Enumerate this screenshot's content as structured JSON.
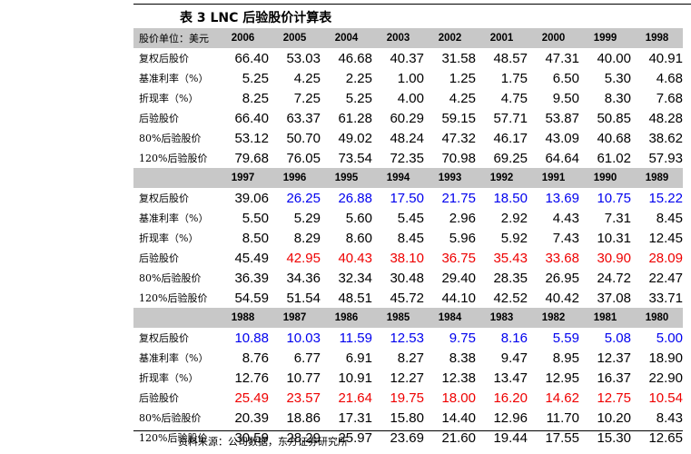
{
  "title": "表 3   LNC 后验股价计算表",
  "source": "资料来源：公司数据，东方证券研究所",
  "colors": {
    "header_bg": "#c8c8c8",
    "blue": "#0000ee",
    "red": "#ee0000",
    "black": "#000000"
  },
  "header_label": "股价单位：美元",
  "blocks": [
    {
      "years": [
        "2006",
        "2005",
        "2004",
        "2003",
        "2002",
        "2001",
        "2000",
        "1999",
        "1998"
      ],
      "show_label": true,
      "rows": [
        {
          "label": "复权后股价",
          "values": [
            "66.40",
            "53.03",
            "46.68",
            "40.37",
            "31.58",
            "48.57",
            "47.31",
            "40.00",
            "40.91"
          ],
          "color": "black"
        },
        {
          "label": "基准利率（%）",
          "values": [
            "5.25",
            "4.25",
            "2.25",
            "1.00",
            "1.25",
            "1.75",
            "6.50",
            "5.30",
            "4.68"
          ],
          "color": "black"
        },
        {
          "label": "折现率（%）",
          "values": [
            "8.25",
            "7.25",
            "5.25",
            "4.00",
            "4.25",
            "4.75",
            "9.50",
            "8.30",
            "7.68"
          ],
          "color": "black"
        },
        {
          "label": "后验股价",
          "values": [
            "66.40",
            "63.37",
            "61.28",
            "60.29",
            "59.15",
            "57.71",
            "53.87",
            "50.85",
            "48.28"
          ],
          "color": "black"
        },
        {
          "label": "80%后验股价",
          "values": [
            "53.12",
            "50.70",
            "49.02",
            "48.24",
            "47.32",
            "46.17",
            "43.09",
            "40.68",
            "38.62"
          ],
          "color": "black"
        },
        {
          "label": "120%后验股价",
          "values": [
            "79.68",
            "76.05",
            "73.54",
            "72.35",
            "70.98",
            "69.25",
            "64.64",
            "61.02",
            "57.93"
          ],
          "color": "black"
        }
      ]
    },
    {
      "years": [
        "1997",
        "1996",
        "1995",
        "1994",
        "1993",
        "1992",
        "1991",
        "1990",
        "1989"
      ],
      "show_label": false,
      "rows": [
        {
          "label": "复权后股价",
          "values": [
            "39.06",
            "26.25",
            "26.88",
            "17.50",
            "21.75",
            "18.50",
            "13.69",
            "10.75",
            "15.22"
          ],
          "color": "blue",
          "first_black": true
        },
        {
          "label": "基准利率（%）",
          "values": [
            "5.50",
            "5.29",
            "5.60",
            "5.45",
            "2.96",
            "2.92",
            "4.43",
            "7.31",
            "8.45"
          ],
          "color": "black"
        },
        {
          "label": "折现率（%）",
          "values": [
            "8.50",
            "8.29",
            "8.60",
            "8.45",
            "5.96",
            "5.92",
            "7.43",
            "10.31",
            "12.45"
          ],
          "color": "black"
        },
        {
          "label": "后验股价",
          "values": [
            "45.49",
            "42.95",
            "40.43",
            "38.10",
            "36.75",
            "35.43",
            "33.68",
            "30.90",
            "28.09"
          ],
          "color": "red",
          "first_black": true
        },
        {
          "label": "80%后验股价",
          "values": [
            "36.39",
            "34.36",
            "32.34",
            "30.48",
            "29.40",
            "28.35",
            "26.95",
            "24.72",
            "22.47"
          ],
          "color": "black"
        },
        {
          "label": "120%后验股价",
          "values": [
            "54.59",
            "51.54",
            "48.51",
            "45.72",
            "44.10",
            "42.52",
            "40.42",
            "37.08",
            "33.71"
          ],
          "color": "black"
        }
      ]
    },
    {
      "years": [
        "1988",
        "1987",
        "1986",
        "1985",
        "1984",
        "1983",
        "1982",
        "1981",
        "1980"
      ],
      "show_label": false,
      "rows": [
        {
          "label": "复权后股价",
          "values": [
            "10.88",
            "10.03",
            "11.59",
            "12.53",
            "9.75",
            "8.16",
            "5.59",
            "5.08",
            "5.00"
          ],
          "color": "blue"
        },
        {
          "label": "基准利率（%）",
          "values": [
            "8.76",
            "6.77",
            "6.91",
            "8.27",
            "8.38",
            "9.47",
            "8.95",
            "12.37",
            "18.90"
          ],
          "color": "black"
        },
        {
          "label": "折现率（%）",
          "values": [
            "12.76",
            "10.77",
            "10.91",
            "12.27",
            "12.38",
            "13.47",
            "12.95",
            "16.37",
            "22.90"
          ],
          "color": "black"
        },
        {
          "label": "后验股价",
          "values": [
            "25.49",
            "23.57",
            "21.64",
            "19.75",
            "18.00",
            "16.20",
            "14.62",
            "12.75",
            "10.54"
          ],
          "color": "red"
        },
        {
          "label": "80%后验股价",
          "values": [
            "20.39",
            "18.86",
            "17.31",
            "15.80",
            "14.40",
            "12.96",
            "11.70",
            "10.20",
            "8.43"
          ],
          "color": "black"
        },
        {
          "label": "120%后验股价",
          "values": [
            "30.59",
            "28.29",
            "25.97",
            "23.69",
            "21.60",
            "19.44",
            "17.55",
            "15.30",
            "12.65"
          ],
          "color": "black"
        }
      ]
    }
  ]
}
